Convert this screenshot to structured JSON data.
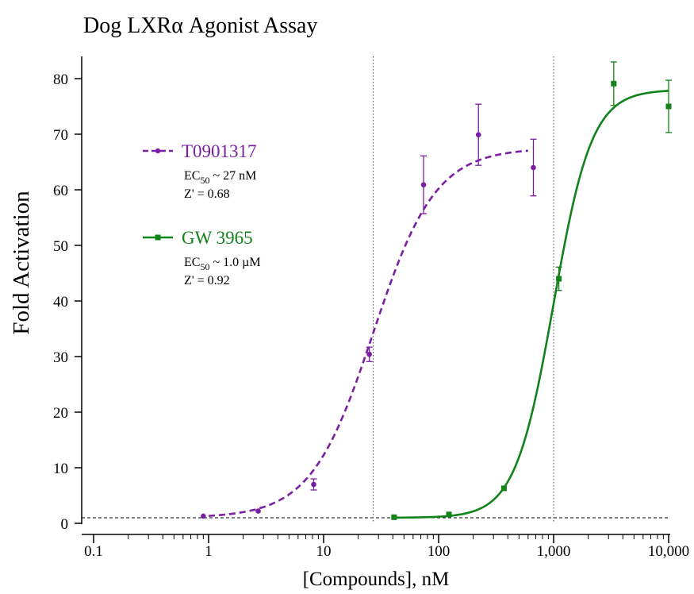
{
  "chart_data": {
    "type": "scatter",
    "title": "Dog LXRα Agonist Assay",
    "xlabel": "[Compounds], nM",
    "ylabel": "Fold Activation",
    "xscale": "log",
    "xlim": [
      0.1,
      10000
    ],
    "ylim": [
      0,
      84
    ],
    "x_ticks": [
      0.1,
      1,
      10,
      100,
      1000,
      10000
    ],
    "x_tick_labels": [
      "0.1",
      "1",
      "10",
      "100",
      "1,000",
      "10,000"
    ],
    "y_ticks": [
      0,
      10,
      20,
      30,
      40,
      50,
      60,
      70,
      80
    ],
    "y_tick_labels": [
      "0",
      "10",
      "20",
      "30",
      "40",
      "50",
      "60",
      "70",
      "80"
    ],
    "baseline": 1,
    "vertical_reference_lines": [
      27,
      1000
    ],
    "grid": false,
    "legend_position": "left",
    "series": [
      {
        "name": "T0901317",
        "color": "#7b1fa2",
        "marker": "circle",
        "line_style": "dashed",
        "ec50_label": "EC",
        "ec50_sub": "50",
        "ec50_value": " ~ 27 nM",
        "z_label": "Z' = 0.68",
        "fit": {
          "bottom": 1,
          "top": 67.5,
          "ec50": 27,
          "hill": 1.6,
          "x_range": [
            1,
            600
          ]
        },
        "points": [
          {
            "x": 0.9,
            "y": 1.3,
            "err": 0
          },
          {
            "x": 2.7,
            "y": 2.2,
            "err": 0
          },
          {
            "x": 8.2,
            "y": 7.0,
            "err": 1.0
          },
          {
            "x": 25,
            "y": 30.4,
            "err": 1.3
          },
          {
            "x": 74,
            "y": 60.9,
            "err": 5.2
          },
          {
            "x": 222,
            "y": 69.9,
            "err": 5.5
          },
          {
            "x": 667,
            "y": 64.0,
            "err": 5.1
          }
        ]
      },
      {
        "name": "GW 3965",
        "color": "#12821a",
        "marker": "square",
        "line_style": "solid",
        "ec50_label": "EC",
        "ec50_sub": "50",
        "ec50_value": " ~ 1.0 µM",
        "z_label": "Z' = 0.92",
        "fit": {
          "bottom": 1,
          "top": 78,
          "ec50": 1000,
          "hill": 2.6,
          "x_range": [
            41,
            10000
          ]
        },
        "points": [
          {
            "x": 41,
            "y": 1.1,
            "err": 0
          },
          {
            "x": 123,
            "y": 1.6,
            "err": 0
          },
          {
            "x": 370,
            "y": 6.3,
            "err": 0
          },
          {
            "x": 1111,
            "y": 44.0,
            "err": 2.1
          },
          {
            "x": 3333,
            "y": 79.1,
            "err": 3.9
          },
          {
            "x": 10000,
            "y": 75.0,
            "err": 4.7
          }
        ]
      }
    ]
  }
}
